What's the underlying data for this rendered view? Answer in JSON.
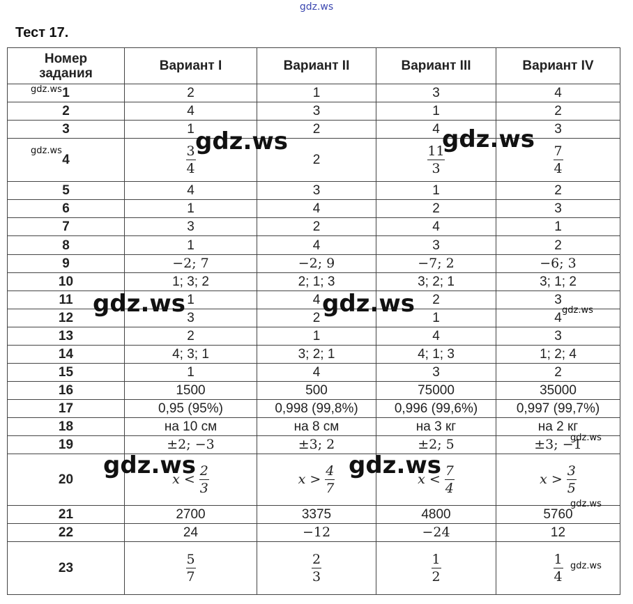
{
  "site_label": "gdz.ws",
  "title": "Тест 17.",
  "headers": [
    "Номер задания",
    "Вариант I",
    "Вариант II",
    "Вариант III",
    "Вариант IV"
  ],
  "rows": [
    {
      "n": "1",
      "h": 26,
      "cells": [
        {
          "t": "text",
          "v": "2"
        },
        {
          "t": "text",
          "v": "1"
        },
        {
          "t": "text",
          "v": "3"
        },
        {
          "t": "text",
          "v": "4"
        }
      ]
    },
    {
      "n": "2",
      "h": 26,
      "cells": [
        {
          "t": "text",
          "v": "4"
        },
        {
          "t": "text",
          "v": "3"
        },
        {
          "t": "text",
          "v": "1"
        },
        {
          "t": "text",
          "v": "2"
        }
      ]
    },
    {
      "n": "3",
      "h": 26,
      "cells": [
        {
          "t": "text",
          "v": "1"
        },
        {
          "t": "text",
          "v": "2"
        },
        {
          "t": "text",
          "v": "4"
        },
        {
          "t": "text",
          "v": "3"
        }
      ]
    },
    {
      "n": "4",
      "h": 62,
      "cells": [
        {
          "t": "frac",
          "num": "3",
          "den": "4"
        },
        {
          "t": "text",
          "v": "2"
        },
        {
          "t": "frac",
          "num": "11",
          "den": "3"
        },
        {
          "t": "frac",
          "num": "7",
          "den": "4"
        }
      ]
    },
    {
      "n": "5",
      "h": 26,
      "cells": [
        {
          "t": "text",
          "v": "4"
        },
        {
          "t": "text",
          "v": "3"
        },
        {
          "t": "text",
          "v": "1"
        },
        {
          "t": "text",
          "v": "2"
        }
      ]
    },
    {
      "n": "6",
      "h": 26,
      "cells": [
        {
          "t": "text",
          "v": "1"
        },
        {
          "t": "text",
          "v": "4"
        },
        {
          "t": "text",
          "v": "2"
        },
        {
          "t": "text",
          "v": "3"
        }
      ]
    },
    {
      "n": "7",
      "h": 26,
      "cells": [
        {
          "t": "text",
          "v": "3"
        },
        {
          "t": "text",
          "v": "2"
        },
        {
          "t": "text",
          "v": "4"
        },
        {
          "t": "text",
          "v": "1"
        }
      ]
    },
    {
      "n": "8",
      "h": 27,
      "cells": [
        {
          "t": "text",
          "v": "1"
        },
        {
          "t": "text",
          "v": "4"
        },
        {
          "t": "text",
          "v": "3"
        },
        {
          "t": "text",
          "v": "2"
        }
      ]
    },
    {
      "n": "9",
      "h": 26,
      "cells": [
        {
          "t": "mono",
          "v": "−2; 7"
        },
        {
          "t": "mono",
          "v": "−2; 9"
        },
        {
          "t": "mono",
          "v": "−7; 2"
        },
        {
          "t": "mono",
          "v": "−6; 3"
        }
      ]
    },
    {
      "n": "10",
      "h": 26,
      "cells": [
        {
          "t": "text",
          "v": "1; 3; 2"
        },
        {
          "t": "text",
          "v": "2; 1; 3"
        },
        {
          "t": "text",
          "v": "3; 2; 1"
        },
        {
          "t": "text",
          "v": "3; 1; 2"
        }
      ]
    },
    {
      "n": "11",
      "h": 26,
      "cells": [
        {
          "t": "text",
          "v": "1"
        },
        {
          "t": "text",
          "v": "4"
        },
        {
          "t": "text",
          "v": "2"
        },
        {
          "t": "text",
          "v": "3"
        }
      ]
    },
    {
      "n": "12",
      "h": 26,
      "cells": [
        {
          "t": "text",
          "v": "3"
        },
        {
          "t": "text",
          "v": "2"
        },
        {
          "t": "text",
          "v": "1"
        },
        {
          "t": "text",
          "v": "4"
        }
      ]
    },
    {
      "n": "13",
      "h": 26,
      "cells": [
        {
          "t": "text",
          "v": "2"
        },
        {
          "t": "text",
          "v": "1"
        },
        {
          "t": "text",
          "v": "4"
        },
        {
          "t": "text",
          "v": "3"
        }
      ]
    },
    {
      "n": "14",
      "h": 26,
      "cells": [
        {
          "t": "text",
          "v": "4; 3; 1"
        },
        {
          "t": "text",
          "v": "3; 2; 1"
        },
        {
          "t": "text",
          "v": "4; 1; 3"
        },
        {
          "t": "text",
          "v": "1; 2; 4"
        }
      ]
    },
    {
      "n": "15",
      "h": 26,
      "cells": [
        {
          "t": "text",
          "v": "1"
        },
        {
          "t": "text",
          "v": "4"
        },
        {
          "t": "text",
          "v": "3"
        },
        {
          "t": "text",
          "v": "2"
        }
      ]
    },
    {
      "n": "16",
      "h": 26,
      "cells": [
        {
          "t": "text",
          "v": "1500"
        },
        {
          "t": "text",
          "v": "500"
        },
        {
          "t": "text",
          "v": "75000"
        },
        {
          "t": "text",
          "v": "35000"
        }
      ]
    },
    {
      "n": "17",
      "h": 26,
      "cells": [
        {
          "t": "text",
          "v": "0,95 (95%)"
        },
        {
          "t": "text",
          "v": "0,998 (99,8%)"
        },
        {
          "t": "text",
          "v": "0,996 (99,6%)"
        },
        {
          "t": "text",
          "v": "0,997 (99,7%)"
        }
      ]
    },
    {
      "n": "18",
      "h": 26,
      "cells": [
        {
          "t": "text",
          "v": "на 10 см"
        },
        {
          "t": "text",
          "v": "на 8 см"
        },
        {
          "t": "text",
          "v": "на 3 кг"
        },
        {
          "t": "text",
          "v": "на 2 кг"
        }
      ]
    },
    {
      "n": "19",
      "h": 26,
      "cells": [
        {
          "t": "mono",
          "v": "±2; −3"
        },
        {
          "t": "mono",
          "v": "±3; 2"
        },
        {
          "t": "mono",
          "v": "±2; 5"
        },
        {
          "t": "mono",
          "v": "±3; −1"
        }
      ]
    },
    {
      "n": "20",
      "h": 74,
      "cells": [
        {
          "t": "ineq",
          "var": "x",
          "op": "<",
          "num": "2",
          "den": "3"
        },
        {
          "t": "ineq",
          "var": "x",
          "op": ">",
          "num": "4",
          "den": "7"
        },
        {
          "t": "ineq",
          "var": "x",
          "op": "<",
          "num": "7",
          "den": "4"
        },
        {
          "t": "ineq",
          "var": "x",
          "op": ">",
          "num": "3",
          "den": "5"
        }
      ]
    },
    {
      "n": "21",
      "h": 26,
      "cells": [
        {
          "t": "text",
          "v": "2700"
        },
        {
          "t": "text",
          "v": "3375"
        },
        {
          "t": "text",
          "v": "4800"
        },
        {
          "t": "text",
          "v": "5760"
        }
      ]
    },
    {
      "n": "22",
      "h": 26,
      "cells": [
        {
          "t": "text",
          "v": "24"
        },
        {
          "t": "mono",
          "v": "−12"
        },
        {
          "t": "mono",
          "v": "−24"
        },
        {
          "t": "text",
          "v": "12"
        }
      ]
    },
    {
      "n": "23",
      "h": 76,
      "cells": [
        {
          "t": "frac",
          "num": "5",
          "den": "7"
        },
        {
          "t": "frac",
          "num": "2",
          "den": "3"
        },
        {
          "t": "frac",
          "num": "1",
          "den": "2"
        },
        {
          "t": "frac",
          "num": "1",
          "den": "4"
        }
      ]
    }
  ],
  "watermark_big": "gdz.ws",
  "watermark_small": "gdz.ws"
}
